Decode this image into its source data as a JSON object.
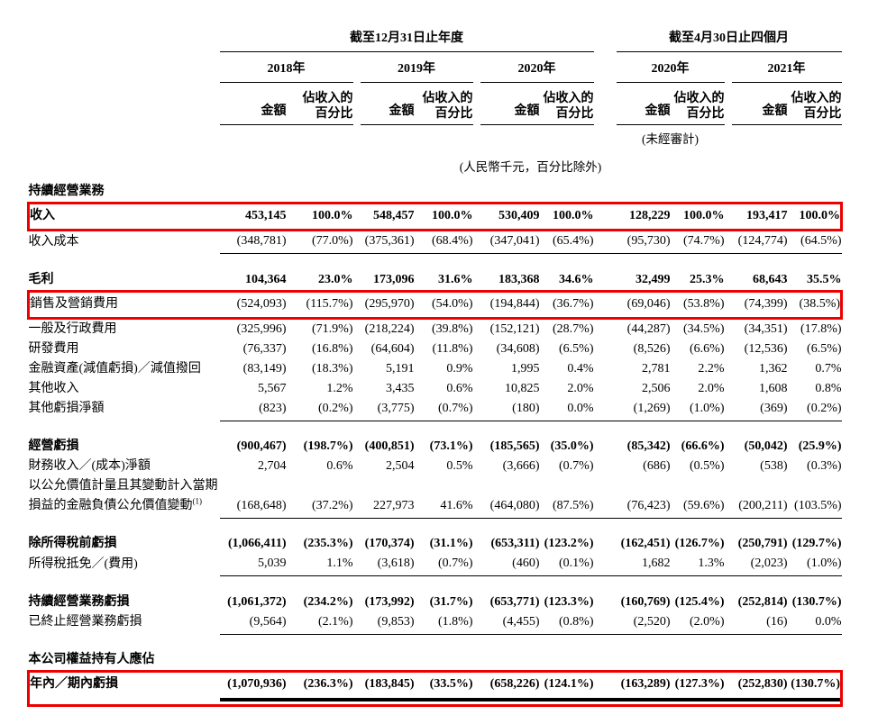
{
  "page": {
    "background": "#ffffff",
    "highlight_box_color": "#ee0000"
  },
  "table": {
    "header": {
      "period_groups": [
        {
          "label": "截至12月31日止年度",
          "years": [
            "2018年",
            "2019年",
            "2020年"
          ]
        },
        {
          "label": "截至4月30日止四個月",
          "years": [
            "2020年",
            "2021年"
          ]
        }
      ],
      "col_amount": "金額",
      "col_pct_line1": "佔收入的",
      "col_pct_line2": "百分比",
      "unaudited_note": "(未經審計)",
      "unit_note": "(人民幣千元，百分比除外)"
    },
    "rows": [
      {
        "kind": "section",
        "label": "持續經營業務"
      },
      {
        "kind": "data",
        "label": "收入",
        "bold": true,
        "box": "full",
        "values": [
          "453,145",
          "100.0%",
          "548,457",
          "100.0%",
          "530,409",
          "100.0%",
          "128,229",
          "100.0%",
          "193,417",
          "100.0%"
        ]
      },
      {
        "kind": "data",
        "label": "收入成本",
        "rule_after": true,
        "values": [
          "(348,781)",
          "(77.0%)",
          "(375,361)",
          "(68.4%)",
          "(347,041)",
          "(65.4%)",
          "(95,730)",
          "(74.7%)",
          "(124,774)",
          "(64.5%)"
        ]
      },
      {
        "kind": "spacer"
      },
      {
        "kind": "data",
        "label": "毛利",
        "bold": true,
        "values": [
          "104,364",
          "23.0%",
          "173,096",
          "31.6%",
          "183,368",
          "34.6%",
          "32,499",
          "25.3%",
          "68,643",
          "35.5%"
        ]
      },
      {
        "kind": "data",
        "label": "銷售及營銷費用",
        "box": "full",
        "values": [
          "(524,093)",
          "(115.7%)",
          "(295,970)",
          "(54.0%)",
          "(194,844)",
          "(36.7%)",
          "(69,046)",
          "(53.8%)",
          "(74,399)",
          "(38.5%)"
        ]
      },
      {
        "kind": "data",
        "label": "一般及行政費用",
        "values": [
          "(325,996)",
          "(71.9%)",
          "(218,224)",
          "(39.8%)",
          "(152,121)",
          "(28.7%)",
          "(44,287)",
          "(34.5%)",
          "(34,351)",
          "(17.8%)"
        ]
      },
      {
        "kind": "data",
        "label": "研發費用",
        "values": [
          "(76,337)",
          "(16.8%)",
          "(64,604)",
          "(11.8%)",
          "(34,608)",
          "(6.5%)",
          "(8,526)",
          "(6.6%)",
          "(12,536)",
          "(6.5%)"
        ]
      },
      {
        "kind": "data",
        "label": "金融資產(減值虧損)／減值撥回",
        "values": [
          "(83,149)",
          "(18.3%)",
          "5,191",
          "0.9%",
          "1,995",
          "0.4%",
          "2,781",
          "2.2%",
          "1,362",
          "0.7%"
        ]
      },
      {
        "kind": "data",
        "label": "其他收入",
        "values": [
          "5,567",
          "1.2%",
          "3,435",
          "0.6%",
          "10,825",
          "2.0%",
          "2,506",
          "2.0%",
          "1,608",
          "0.8%"
        ]
      },
      {
        "kind": "data",
        "label": "其他虧損淨額",
        "rule_after": true,
        "values": [
          "(823)",
          "(0.2%)",
          "(3,775)",
          "(0.7%)",
          "(180)",
          "0.0%",
          "(1,269)",
          "(1.0%)",
          "(369)",
          "(0.2%)"
        ]
      },
      {
        "kind": "spacer"
      },
      {
        "kind": "data",
        "label": "經營虧損",
        "bold": true,
        "values": [
          "(900,467)",
          "(198.7%)",
          "(400,851)",
          "(73.1%)",
          "(185,565)",
          "(35.0%)",
          "(85,342)",
          "(66.6%)",
          "(50,042)",
          "(25.9%)"
        ]
      },
      {
        "kind": "data",
        "label": "財務收入／(成本)淨額",
        "values": [
          "2,704",
          "0.6%",
          "2,504",
          "0.5%",
          "(3,666)",
          "(0.7%)",
          "(686)",
          "(0.5%)",
          "(538)",
          "(0.3%)"
        ]
      },
      {
        "kind": "data",
        "label": "以公允價值計量且其變動計入當期",
        "label2": "損益的金融負債公允價值變動",
        "sup": "(1)",
        "rule_after": true,
        "values": [
          "(168,648)",
          "(37.2%)",
          "227,973",
          "41.6%",
          "(464,080)",
          "(87.5%)",
          "(76,423)",
          "(59.6%)",
          "(200,211)",
          "(103.5%)"
        ]
      },
      {
        "kind": "spacer"
      },
      {
        "kind": "data",
        "label": "除所得稅前虧損",
        "bold": true,
        "values": [
          "(1,066,411)",
          "(235.3%)",
          "(170,374)",
          "(31.1%)",
          "(653,311)",
          "(123.2%)",
          "(162,451)",
          "(126.7%)",
          "(250,791)",
          "(129.7%)"
        ]
      },
      {
        "kind": "data",
        "label": "所得稅抵免／(費用)",
        "rule_after": true,
        "values": [
          "5,039",
          "1.1%",
          "(3,618)",
          "(0.7%)",
          "(460)",
          "(0.1%)",
          "1,682",
          "1.3%",
          "(2,023)",
          "(1.0%)"
        ]
      },
      {
        "kind": "spacer"
      },
      {
        "kind": "data",
        "label": "持續經營業務虧損",
        "bold": true,
        "values": [
          "(1,061,372)",
          "(234.2%)",
          "(173,992)",
          "(31.7%)",
          "(653,771)",
          "(123.3%)",
          "(160,769)",
          "(125.4%)",
          "(252,814)",
          "(130.7%)"
        ]
      },
      {
        "kind": "data",
        "label": "已終止經營業務虧損",
        "rule_after": true,
        "values": [
          "(9,564)",
          "(2.1%)",
          "(9,853)",
          "(1.8%)",
          "(4,455)",
          "(0.8%)",
          "(2,520)",
          "(2.0%)",
          "(16)",
          "0.0%"
        ]
      },
      {
        "kind": "spacer"
      },
      {
        "kind": "section",
        "label": "本公司權益持有人應佔"
      },
      {
        "kind": "data",
        "label": "年內／期內虧損",
        "bold": true,
        "box": "top",
        "values": [
          "(1,070,936)",
          "(236.3%)",
          "(183,845)",
          "(33.5%)",
          "(658,226)",
          "(124.1%)",
          "(163,289)",
          "(127.3%)",
          "(252,830)",
          "(130.7%)"
        ]
      },
      {
        "kind": "double_rule",
        "box": "bottom"
      }
    ]
  }
}
